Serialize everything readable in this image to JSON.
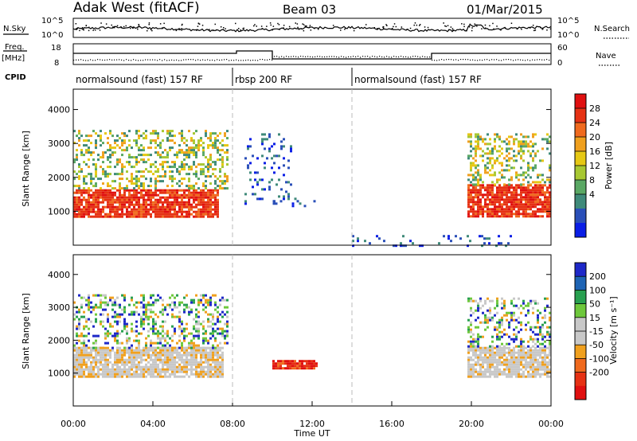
{
  "header": {
    "radar": "Adak West (fitACF)",
    "beam": "Beam 03",
    "date": "01/Mar/2015"
  },
  "strip_labels": {
    "nsky": "N.Sky",
    "nsky_hi": "10^5",
    "nsky_lo": "10^0",
    "nsearch": "N.Search",
    "nsearch_hi": "10^5",
    "nsearch_lo": "10^0",
    "freq_title": "Freq.",
    "freq_unit": "[MHz]",
    "freq_hi": "18",
    "freq_lo": "8",
    "nave": "Nave",
    "nave_hi": "60",
    "nave_lo": "0",
    "cpid": "CPID"
  },
  "cpid_segments": [
    {
      "label": "normalsound (fast) 157 RF",
      "start_hour": 0,
      "end_hour": 8
    },
    {
      "label": "rbsp 200 RF",
      "start_hour": 8,
      "end_hour": 14
    },
    {
      "label": "normalsound (fast) 157 RF",
      "start_hour": 14,
      "end_hour": 24
    }
  ],
  "chart_data": [
    {
      "type": "heatmap",
      "panel": "power",
      "xlabel": "",
      "ylabel": "Slant Range [km]",
      "xlim": [
        0,
        24
      ],
      "ylim": [
        0,
        4600
      ],
      "yticks": [
        "1000",
        "2000",
        "3000",
        "4000"
      ],
      "colorbar_label": "Power [dB]",
      "colorbar_ticks": [
        "4",
        "8",
        "12",
        "16",
        "20",
        "24",
        "28"
      ],
      "colorbar_colors": [
        "#0a1ee6",
        "#2a4fb8",
        "#3f8a7a",
        "#5aa864",
        "#a8c832",
        "#e6c814",
        "#f0a01e",
        "#f06a1e",
        "#e63214",
        "#e01010"
      ],
      "regions": [
        {
          "from_hour": 0.0,
          "to_hour": 7.3,
          "from_km": 850,
          "to_km": 1650,
          "level": "strong"
        },
        {
          "from_hour": 0.0,
          "to_hour": 7.8,
          "from_km": 1650,
          "to_km": 3400,
          "level": "mixed"
        },
        {
          "from_hour": 8.6,
          "to_hour": 11.0,
          "from_km": 1250,
          "to_km": 3300,
          "level": "weak"
        },
        {
          "from_hour": 9.9,
          "to_hour": 12.2,
          "from_km": 1150,
          "to_km": 1400,
          "level": "weak"
        },
        {
          "from_hour": 14.0,
          "to_hour": 22.0,
          "from_km": 0,
          "to_km": 300,
          "level": "weak"
        },
        {
          "from_hour": 19.8,
          "to_hour": 24.0,
          "from_km": 850,
          "to_km": 1800,
          "level": "strong"
        },
        {
          "from_hour": 19.8,
          "to_hour": 24.0,
          "from_km": 1800,
          "to_km": 3300,
          "level": "mixed"
        }
      ]
    },
    {
      "type": "heatmap",
      "panel": "velocity",
      "xlabel": "Time UT",
      "ylabel": "Slant Range [km]",
      "xlim": [
        0,
        24
      ],
      "ylim": [
        0,
        4600
      ],
      "yticks": [
        "1000",
        "2000",
        "3000",
        "4000"
      ],
      "xticks": [
        "00:00",
        "04:00",
        "08:00",
        "12:00",
        "16:00",
        "20:00",
        "00:00"
      ],
      "colorbar_label": "Velocity [m s⁻¹]",
      "colorbar_ticks": [
        "200",
        "100",
        "50",
        "15",
        "-15",
        "-50",
        "-100",
        "-200"
      ],
      "colorbar_colors": [
        "#1e28c8",
        "#1e64b4",
        "#28a050",
        "#6ec83c",
        "#c8c8c8",
        "#c8c8c8",
        "#f0a01e",
        "#f06a1e",
        "#e63214",
        "#e01010"
      ],
      "regions": [
        {
          "from_hour": 0.0,
          "to_hour": 7.5,
          "from_km": 900,
          "to_km": 1800,
          "level": "gray"
        },
        {
          "from_hour": 0.0,
          "to_hour": 7.8,
          "from_km": 1800,
          "to_km": 3400,
          "level": "mixed"
        },
        {
          "from_hour": 10.0,
          "to_hour": 12.2,
          "from_km": 1150,
          "to_km": 1400,
          "level": "red"
        },
        {
          "from_hour": 19.8,
          "to_hour": 24.0,
          "from_km": 900,
          "to_km": 1800,
          "level": "gray"
        },
        {
          "from_hour": 19.8,
          "to_hour": 24.0,
          "from_km": 1800,
          "to_km": 3300,
          "level": "mixed"
        }
      ]
    }
  ]
}
